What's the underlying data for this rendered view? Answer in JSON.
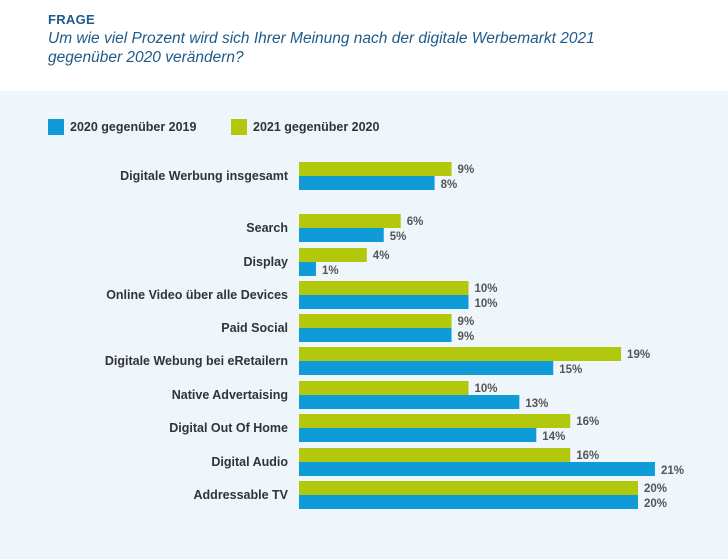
{
  "header": {
    "kicker": "FRAGE",
    "question_line1": "Um wie viel Prozent wird sich Ihrer Meinung nach der digitale Werbemarkt 2021",
    "question_line2": "gegenüber 2020 verändern?"
  },
  "chart_data": {
    "type": "bar",
    "orientation": "horizontal",
    "title": "Um wie viel Prozent wird sich Ihrer Meinung nach der digitale Werbemarkt 2021 gegenüber 2020 verändern?",
    "xlabel": "",
    "ylabel": "",
    "xlim": [
      0,
      21
    ],
    "grid": false,
    "legend_position": "top-left",
    "categories": [
      "Digitale Werbung insgesamt",
      "Search",
      "Display",
      "Online Video über alle Devices",
      "Paid Social",
      "Digitale Webung bei eRetailern",
      "Native Advertaising",
      "Digital Out Of Home",
      "Digital Audio",
      "Addressable TV"
    ],
    "series": [
      {
        "name": "2020 gegenüber 2019",
        "color": "#0f9bd7",
        "values": [
          8,
          5,
          1,
          10,
          9,
          15,
          13,
          14,
          21,
          20
        ],
        "labels": [
          "8%",
          "5%",
          "1%",
          "10%",
          "9%",
          "15%",
          "13%",
          "14%",
          "21%",
          "20%"
        ]
      },
      {
        "name": "2021 gegenüber 2020",
        "color": "#b2c80d",
        "values": [
          9,
          6,
          4,
          10,
          9,
          19,
          10,
          16,
          16,
          20
        ],
        "labels": [
          "9%",
          "6%",
          "4%",
          "10%",
          "9%",
          "19%",
          "10%",
          "16%",
          "16%",
          "20%"
        ]
      }
    ]
  }
}
